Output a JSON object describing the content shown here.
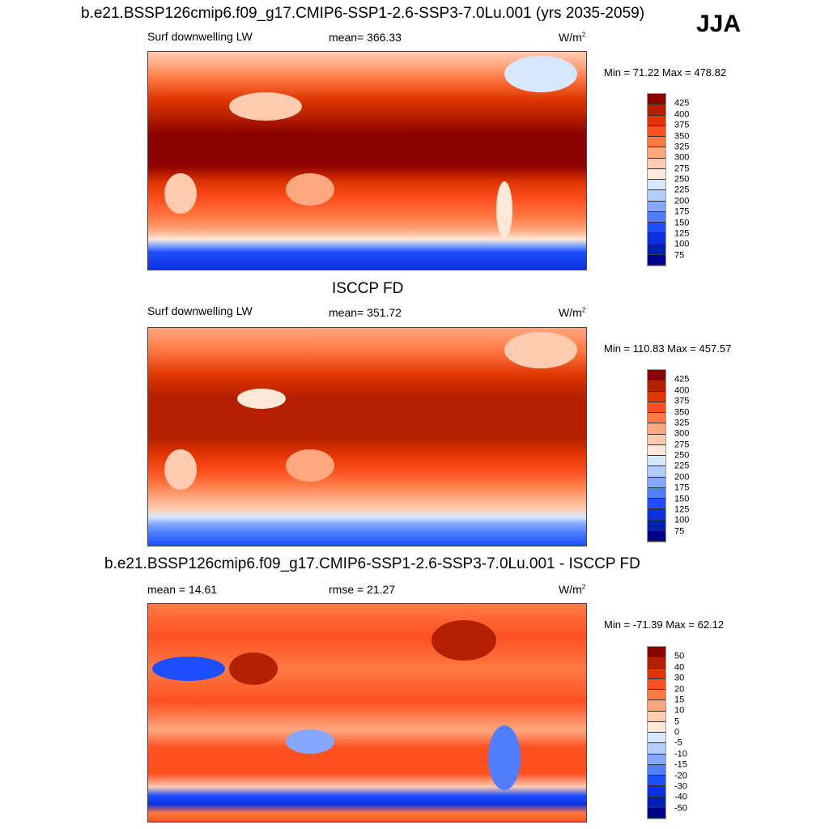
{
  "figure": {
    "title": "b.e21.BSSP126cmip6.f09_g17.CMIP6-SSP1-2.6-SSP3-7.0Lu.001 (yrs 2035-2059)",
    "season": "JJA"
  },
  "panels": [
    {
      "title": "",
      "left": "Surf downwelling LW",
      "center": "mean= 366.33",
      "units": "W/m",
      "units_sup": "2",
      "minmax": "Min =  71.22 Max = 478.82",
      "levels": [
        "425",
        "400",
        "375",
        "350",
        "325",
        "300",
        "275",
        "250",
        "225",
        "200",
        "175",
        "150",
        "125",
        "100",
        "75"
      ]
    },
    {
      "title": "ISCCP FD",
      "left": "Surf downwelling LW",
      "center": "mean= 351.72",
      "units": "W/m",
      "units_sup": "2",
      "minmax": "Min = 110.83 Max = 457.57",
      "levels": [
        "425",
        "400",
        "375",
        "350",
        "325",
        "300",
        "275",
        "250",
        "225",
        "200",
        "175",
        "150",
        "125",
        "100",
        "75"
      ]
    },
    {
      "title": "b.e21.BSSP126cmip6.f09_g17.CMIP6-SSP1-2.6-SSP3-7.0Lu.001 - ISCCP FD",
      "left": "mean =  14.61",
      "center": "rmse =  21.27",
      "units": "W/m",
      "units_sup": "2",
      "minmax": "Min = -71.39 Max =  62.12",
      "levels": [
        "50",
        "40",
        "30",
        "20",
        "15",
        "10",
        "5",
        "0",
        "-5",
        "-10",
        "-15",
        "-20",
        "-30",
        "-40",
        "-50"
      ]
    }
  ],
  "colormap": [
    "#8b0000",
    "#b52000",
    "#e03500",
    "#ff5020",
    "#ff7a45",
    "#ffa880",
    "#ffcbb0",
    "#ffe8d8",
    "#d6e8ff",
    "#b3ccff",
    "#85a8ff",
    "#4f7fff",
    "#1e4fff",
    "#0a30e0",
    "#0020b0",
    "#00008b"
  ]
}
